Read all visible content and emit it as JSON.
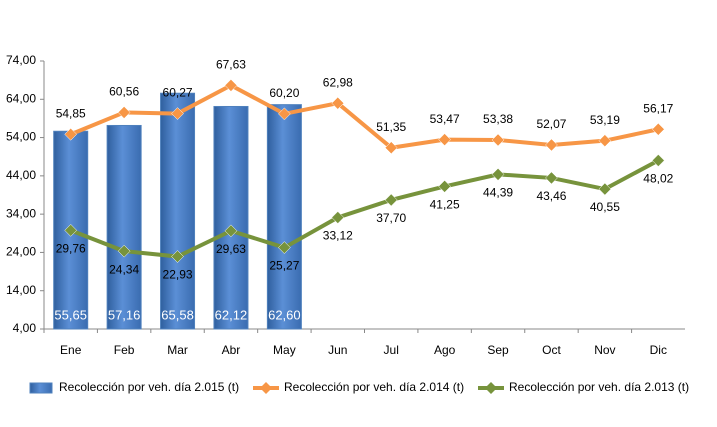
{
  "chart_data": {
    "type": "bar_line",
    "categories": [
      "Ene",
      "Feb",
      "Mar",
      "Abr",
      "May",
      "Jun",
      "Jul",
      "Ago",
      "Sep",
      "Oct",
      "Nov",
      "Dic"
    ],
    "ylim": [
      4,
      74
    ],
    "yticks": [
      {
        "value": 4,
        "label": "4,00"
      },
      {
        "value": 14,
        "label": "14,00"
      },
      {
        "value": 24,
        "label": "24,00"
      },
      {
        "value": 34,
        "label": "34,00"
      },
      {
        "value": 44,
        "label": "44,00"
      },
      {
        "value": 54,
        "label": "54,00"
      },
      {
        "value": 64,
        "label": "64,00"
      },
      {
        "value": 74,
        "label": "74,00"
      }
    ],
    "grid": false,
    "legend": "bottom",
    "series": [
      {
        "name": "Recolección por veh. día 2.015 (t)",
        "type": "bar",
        "color": "#4f81bd",
        "values": [
          55.65,
          57.16,
          65.58,
          62.12,
          62.6,
          null,
          null,
          null,
          null,
          null,
          null,
          null
        ],
        "value_labels": [
          "55,65",
          "57,16",
          "65,58",
          "62,12",
          "62,60",
          null,
          null,
          null,
          null,
          null,
          null,
          null
        ]
      },
      {
        "name": "Recolección por veh. día 2.014 (t)",
        "type": "line",
        "color": "#f79646",
        "values": [
          54.85,
          60.56,
          60.27,
          67.63,
          60.2,
          62.98,
          51.35,
          53.47,
          53.38,
          52.07,
          53.19,
          56.17
        ],
        "value_labels": [
          "54,85",
          "60,56",
          "60,27",
          "67,63",
          "60,20",
          "62,98",
          "51,35",
          "53,47",
          "53,38",
          "52,07",
          "53,19",
          "56,17"
        ]
      },
      {
        "name": "Recolección por veh. día 2.013 (t)",
        "type": "line",
        "color": "#77933c",
        "values": [
          29.76,
          24.34,
          22.93,
          29.63,
          25.27,
          33.12,
          37.7,
          41.25,
          44.39,
          43.46,
          40.55,
          48.02
        ],
        "value_labels": [
          "29,76",
          "24,34",
          "22,93",
          "29,63",
          "25,27",
          "33,12",
          "37,70",
          "41,25",
          "44,39",
          "43,46",
          "40,55",
          "48,02"
        ]
      }
    ]
  }
}
